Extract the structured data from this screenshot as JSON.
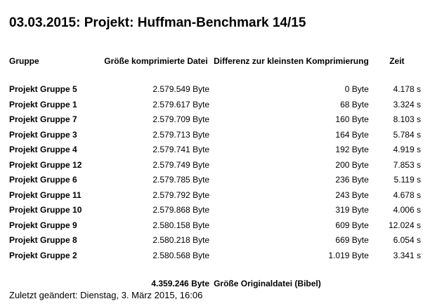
{
  "page": {
    "title": "03.03.2015: Projekt: Huffman-Benchmark 14/15"
  },
  "table": {
    "headers": {
      "group": "Gruppe",
      "size": "Größe komprimierte Datei",
      "diff": "Differenz zur kleinsten Komprimierung",
      "time": "Zeit"
    },
    "rows": [
      {
        "group": "Projekt Gruppe 5",
        "size": "2.579.549 Byte",
        "diff": "0 Byte",
        "time": "4.178 s"
      },
      {
        "group": "Projekt Gruppe 1",
        "size": "2.579.617 Byte",
        "diff": "68 Byte",
        "time": "3.324 s"
      },
      {
        "group": "Projekt Gruppe 7",
        "size": "2.579.709 Byte",
        "diff": "160 Byte",
        "time": "8.103 s"
      },
      {
        "group": "Projekt Gruppe 3",
        "size": "2.579.713 Byte",
        "diff": "164 Byte",
        "time": "5.784 s"
      },
      {
        "group": "Projekt Gruppe 4",
        "size": "2.579.741 Byte",
        "diff": "192 Byte",
        "time": "4.919 s"
      },
      {
        "group": "Projekt Gruppe 12",
        "size": "2.579.749 Byte",
        "diff": "200 Byte",
        "time": "7.853 s"
      },
      {
        "group": "Projekt Gruppe 6",
        "size": "2.579.785 Byte",
        "diff": "236 Byte",
        "time": "5.119 s"
      },
      {
        "group": "Projekt Gruppe 11",
        "size": "2.579.792 Byte",
        "diff": "243 Byte",
        "time": "4.678 s"
      },
      {
        "group": "Projekt Gruppe 10",
        "size": "2.579.868 Byte",
        "diff": "319 Byte",
        "time": "4.006 s"
      },
      {
        "group": "Projekt Gruppe 9",
        "size": "2.580.158 Byte",
        "diff": "609 Byte",
        "time": "12.024 s"
      },
      {
        "group": "Projekt Gruppe 8",
        "size": "2.580.218 Byte",
        "diff": "669 Byte",
        "time": "6.054 s"
      },
      {
        "group": "Projekt Gruppe 2",
        "size": "2.580.568 Byte",
        "diff": "1.019 Byte",
        "time": "3.341 s"
      }
    ],
    "summary": {
      "size": "4.359.246 Byte",
      "label": "Größe Originaldatei (Bibel)"
    }
  },
  "footer": {
    "last_modified": "Zuletzt geändert: Dienstag, 3. März 2015, 16:06"
  }
}
